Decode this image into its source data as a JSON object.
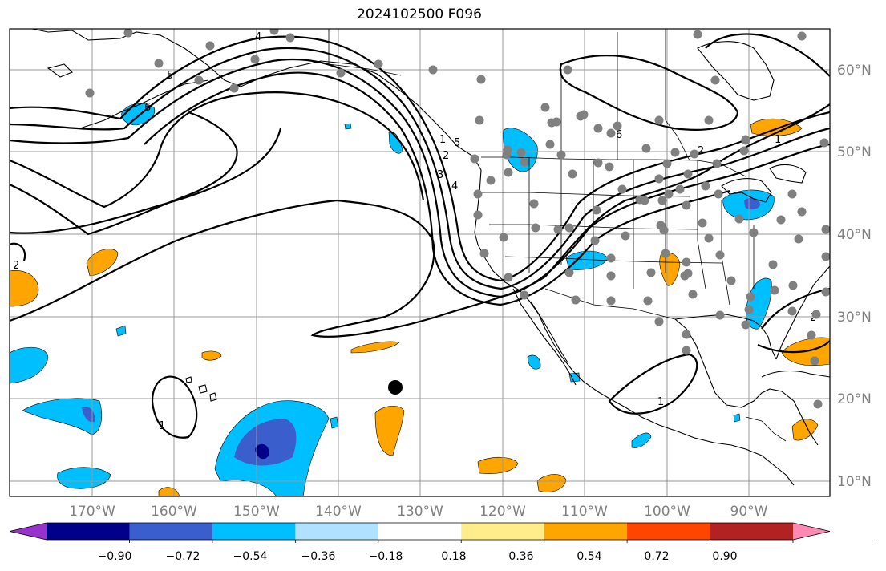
{
  "title": "2024102500 F096",
  "lat_labels": [
    "60°N",
    "50°N",
    "40°N",
    "30°N",
    "20°N",
    "10°N"
  ],
  "lon_labels": [
    "170°W",
    "160°W",
    "150°W",
    "140°W",
    "130°W",
    "120°W",
    "110°W",
    "100°W",
    "90°W"
  ],
  "contour_labels": [
    "4",
    "5",
    "6",
    "1",
    "2",
    "3",
    "4",
    "5",
    "6",
    "2",
    "1",
    "1",
    "2",
    "1",
    "2"
  ],
  "colorbar": {
    "tick_labels": [
      "−0.90",
      "−0.72",
      "−0.54",
      "−0.36",
      "−0.18",
      "0.18",
      "0.36",
      "0.54",
      "0.72",
      "0.90"
    ],
    "colors": [
      "#9932cc",
      "#00008b",
      "#3a5fcd",
      "#00bfff",
      "#b0e2ff",
      "#ffffff",
      "#ffec8b",
      "#ffa500",
      "#ff4500",
      "#b22222",
      "#ff89b0"
    ]
  },
  "colors": {
    "station_marker": "#808080",
    "center_marker": "#000000",
    "grid": "#999999"
  }
}
